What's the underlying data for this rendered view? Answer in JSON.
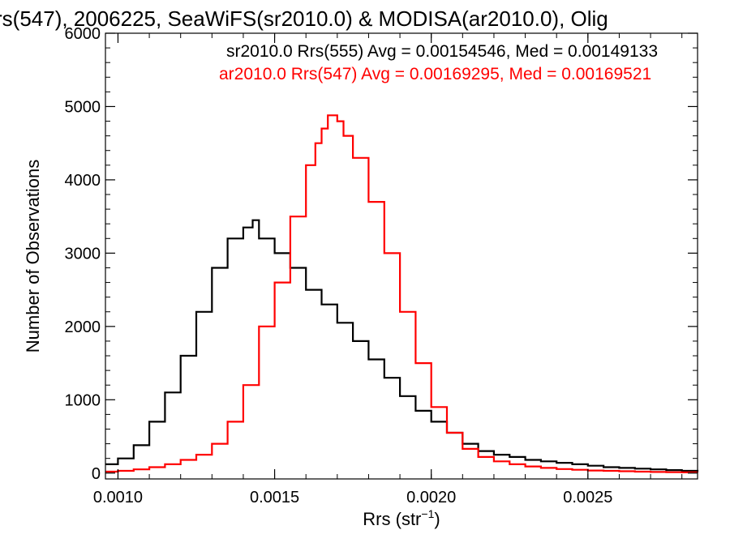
{
  "chart_data": {
    "type": "line",
    "step": true,
    "title": "rs(547), 2006225, SeaWiFS(sr2010.0) & MODISA(ar2010.0), Olig",
    "xlabel": "Rrs (str",
    "xlabel_sup": "−1",
    "xlabel_close": ")",
    "ylabel": "Number of Observations",
    "xlim": [
      0.00096,
      0.00285
    ],
    "ylim": [
      -80,
      6000
    ],
    "xticks": [
      0.001,
      0.0015,
      0.002,
      0.0025
    ],
    "xtick_labels": [
      "0.0010",
      "0.0015",
      "0.0020",
      "0.0025"
    ],
    "yticks": [
      0,
      1000,
      2000,
      3000,
      4000,
      5000,
      6000
    ],
    "ytick_labels": [
      "0",
      "1000",
      "2000",
      "3000",
      "4000",
      "5000",
      "6000"
    ],
    "legend_position": "top-right",
    "annotations": [
      {
        "text": "sr2010.0 Rrs(555) Avg = 0.00154546, Med = 0.00149133",
        "color": "#000000"
      },
      {
        "text": "ar2010.0 Rrs(547) Avg = 0.00169295, Med = 0.00169521",
        "color": "#ff0000"
      }
    ],
    "series": [
      {
        "color": "#000000",
        "x": [
          0.00096,
          0.001,
          0.00105,
          0.0011,
          0.00115,
          0.0012,
          0.00125,
          0.0013,
          0.00135,
          0.0014,
          0.00143,
          0.00145,
          0.0015,
          0.00155,
          0.0016,
          0.00165,
          0.0017,
          0.00175,
          0.0018,
          0.00185,
          0.0019,
          0.00195,
          0.002,
          0.00205,
          0.0021,
          0.00215,
          0.0022,
          0.00225,
          0.0023,
          0.00235,
          0.0024,
          0.00245,
          0.0025,
          0.00255,
          0.0026,
          0.00265,
          0.0027,
          0.00275,
          0.0028,
          0.00285
        ],
        "y": [
          120,
          200,
          380,
          700,
          1100,
          1600,
          2200,
          2800,
          3200,
          3350,
          3450,
          3200,
          3000,
          2800,
          2500,
          2300,
          2050,
          1800,
          1550,
          1300,
          1050,
          850,
          700,
          550,
          400,
          300,
          250,
          220,
          180,
          160,
          140,
          120,
          100,
          80,
          70,
          60,
          50,
          40,
          30,
          25
        ]
      },
      {
        "color": "#ff0000",
        "x": [
          0.00096,
          0.001,
          0.00105,
          0.0011,
          0.00115,
          0.0012,
          0.00125,
          0.0013,
          0.00135,
          0.0014,
          0.00145,
          0.0015,
          0.00155,
          0.0016,
          0.00163,
          0.00165,
          0.00167,
          0.0017,
          0.00172,
          0.00175,
          0.0018,
          0.00185,
          0.0019,
          0.00195,
          0.002,
          0.00205,
          0.0021,
          0.00215,
          0.0022,
          0.00225,
          0.0023,
          0.00235,
          0.0024,
          0.00245,
          0.0025,
          0.00255,
          0.0026,
          0.00265,
          0.0027,
          0.00275,
          0.0028,
          0.00285
        ],
        "y": [
          20,
          30,
          50,
          80,
          120,
          180,
          250,
          400,
          700,
          1200,
          2000,
          2600,
          3500,
          4200,
          4500,
          4700,
          4880,
          4800,
          4600,
          4300,
          3700,
          3000,
          2200,
          1500,
          900,
          550,
          330,
          220,
          160,
          120,
          90,
          70,
          55,
          45,
          35,
          30,
          25,
          20,
          15,
          12,
          10,
          8
        ]
      }
    ]
  }
}
